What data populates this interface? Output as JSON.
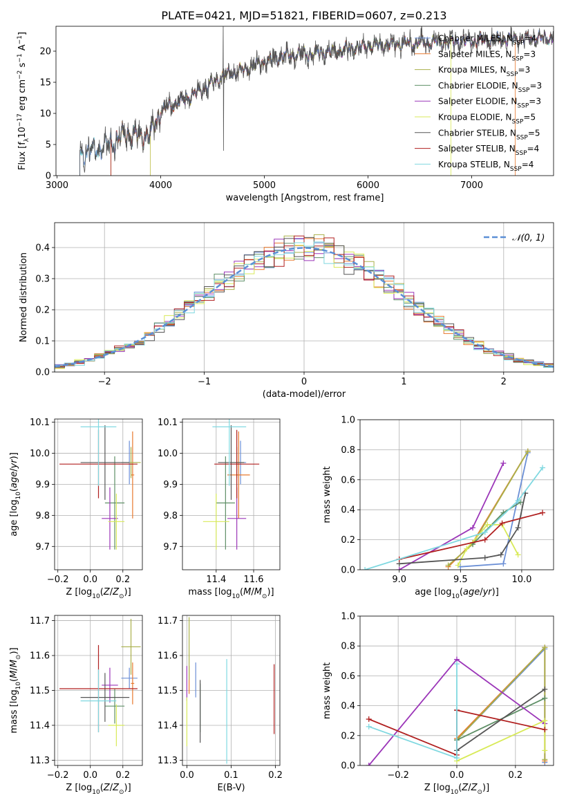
{
  "title": "PLATE=0421, MJD=51821, FIBERID=0607, z=0.213",
  "colors": [
    "#6b8fd6",
    "#e8782d",
    "#a9b04a",
    "#5e8f66",
    "#9b35b8",
    "#d8ea58",
    "#555555",
    "#b01f1f",
    "#7fd8e0"
  ],
  "chart_data": [
    {
      "type": "line",
      "id": "spectrum",
      "xlabel": "wavelength [Angstrom, rest frame]",
      "ylabel": "Flux [f",
      "ylabel_sub": "λ",
      "ylabel_rest": "10",
      "ylabel_exp1": "−17",
      "ylabel_mid": " erg cm",
      "ylabel_exp2": "−2",
      "ylabel_mid2": " s",
      "ylabel_exp3": "−1",
      "ylabel_mid3": " A",
      "ylabel_exp4": "−1",
      "ylabel_end": "]",
      "xlim": [
        2990,
        7790
      ],
      "ylim": [
        0,
        24
      ],
      "xticks": [
        "3000",
        "4000",
        "5000",
        "6000",
        "7000"
      ],
      "yticks": [
        "0",
        "5",
        "10",
        "15",
        "20"
      ],
      "legend": [
        {
          "name": "Chabrier MILES, N",
          "sub": "SSP",
          "val": "=4"
        },
        {
          "name": "Salpeter MILES, N",
          "sub": "SSP",
          "val": "=3"
        },
        {
          "name": "Kroupa MILES, N",
          "sub": "SSP",
          "val": "=3"
        },
        {
          "name": "Chabrier ELODIE, N",
          "sub": "SSP",
          "val": "=3"
        },
        {
          "name": "Salpeter ELODIE, N",
          "sub": "SSP",
          "val": "=3"
        },
        {
          "name": "Kroupa ELODIE, N",
          "sub": "SSP",
          "val": "=5"
        },
        {
          "name": "Chabrier STELIB, N",
          "sub": "SSP",
          "val": "=5"
        },
        {
          "name": "Salpeter STELIB, N",
          "sub": "SSP",
          "val": "=4"
        },
        {
          "name": "Kroupa STELIB, N",
          "sub": "SSP",
          "val": "=4"
        }
      ],
      "continuum": [
        [
          3220,
          3.2
        ],
        [
          3500,
          5.0
        ],
        [
          3600,
          6.0
        ],
        [
          3700,
          6.8
        ],
        [
          3800,
          6.3
        ],
        [
          3900,
          6.5
        ],
        [
          4000,
          10.5
        ],
        [
          4200,
          12.0
        ],
        [
          4400,
          13.8
        ],
        [
          4600,
          16.0
        ],
        [
          4800,
          17.0
        ],
        [
          5000,
          18.3
        ],
        [
          5200,
          19.3
        ],
        [
          5500,
          19.6
        ],
        [
          5800,
          20.3
        ],
        [
          6000,
          20.8
        ],
        [
          6300,
          21.2
        ],
        [
          6600,
          21.4
        ],
        [
          7000,
          21.6
        ],
        [
          7400,
          22.0
        ],
        [
          7790,
          22.1
        ]
      ],
      "model_start": [
        3220,
        3520,
        3520,
        3900,
        3900,
        3900,
        3220,
        3520,
        3220
      ],
      "model_end": [
        7790,
        7420,
        7790,
        7790,
        7790,
        6800,
        7790,
        7790,
        7790
      ]
    },
    {
      "type": "histogram",
      "id": "residuals",
      "xlabel": "(data-model)/error",
      "ylabel": "Normed distribution",
      "xlim": [
        -2.5,
        2.5
      ],
      "ylim": [
        0,
        0.48
      ],
      "xticks": [
        "−2",
        "−1",
        "0",
        "1",
        "2"
      ],
      "yticks": [
        "0.0",
        "0.1",
        "0.2",
        "0.3",
        "0.4"
      ],
      "bin_width": 0.1,
      "legend_label": "𝒩(0, 1)"
    },
    {
      "type": "scatter",
      "id": "age-vs-z",
      "xlabel": "Z [log",
      "xlabel_sub": "10",
      "xlabel_rest": "(Z/Z",
      "xlabel_sub2": "⊙",
      "xlabel_end": ")]",
      "ylabel": "age  [log",
      "ylabel_sub": "10",
      "ylabel_rest": "(age/yr)]",
      "xlim": [
        -0.22,
        0.32
      ],
      "ylim": [
        9.625,
        10.11
      ],
      "xticks": [
        "−0.2",
        "0.0",
        "0.2"
      ],
      "yticks": [
        "9.7",
        "9.8",
        "9.9",
        "10.0",
        "10.1"
      ],
      "points": [
        {
          "x": 0.24,
          "xerr": 0.05,
          "y": 9.97,
          "yerr": 0.07
        },
        {
          "x": 0.26,
          "xerr": 0.01,
          "y": 9.93,
          "yerr": 0.14
        },
        {
          "x": 0.25,
          "xerr": 0.06,
          "y": 9.97,
          "yerr": 0.05
        },
        {
          "x": 0.15,
          "xerr": 0.06,
          "y": 9.84,
          "yerr": 0.15
        },
        {
          "x": 0.12,
          "xerr": 0.05,
          "y": 9.79,
          "yerr": 0.1
        },
        {
          "x": 0.16,
          "xerr": 0.05,
          "y": 9.78,
          "yerr": 0.09
        },
        {
          "x": 0.09,
          "xerr": 0.15,
          "y": 9.97,
          "yerr": 0.12
        },
        {
          "x": 0.05,
          "xerr": 0.24,
          "y": 9.965,
          "yerr": 0.11
        },
        {
          "x": 0.05,
          "xerr": 0.11,
          "y": 10.085,
          "yerr": 0.19
        }
      ]
    },
    {
      "type": "scatter",
      "id": "age-vs-mass",
      "xlabel": "mass [log",
      "xlabel_sub": "10",
      "xlabel_rest": "(M/M",
      "xlabel_sub2": "⊙",
      "xlabel_end": ")]",
      "xlim": [
        11.22,
        11.74
      ],
      "ylim": [
        9.625,
        10.11
      ],
      "xticks": [
        "11.4",
        "11.6"
      ],
      "yticks": [
        "9.7",
        "9.8",
        "9.9",
        "10.0",
        "10.1"
      ],
      "points": [
        {
          "x": 11.53,
          "xerr": 0.03,
          "y": 9.97,
          "yerr": 0.07
        },
        {
          "x": 11.52,
          "xerr": 0.06,
          "y": 9.93,
          "yerr": 0.14
        },
        {
          "x": 11.51,
          "xerr": 0.04,
          "y": 9.97,
          "yerr": 0.05
        },
        {
          "x": 11.45,
          "xerr": 0.05,
          "y": 9.84,
          "yerr": 0.15
        },
        {
          "x": 11.51,
          "xerr": 0.05,
          "y": 9.79,
          "yerr": 0.1
        },
        {
          "x": 11.4,
          "xerr": 0.07,
          "y": 9.78,
          "yerr": 0.09
        },
        {
          "x": 11.48,
          "xerr": 0.07,
          "y": 9.97,
          "yerr": 0.12
        },
        {
          "x": 11.51,
          "xerr": 0.12,
          "y": 9.965,
          "yerr": 0.11
        },
        {
          "x": 11.47,
          "xerr": 0.09,
          "y": 10.085,
          "yerr": 0.19
        }
      ]
    },
    {
      "type": "line",
      "id": "weight-vs-age",
      "xlabel": "age  [log",
      "xlabel_sub": "10",
      "xlabel_rest": "(age/yr)]",
      "ylabel": "mass weight",
      "xlim": [
        8.68,
        10.26
      ],
      "ylim": [
        0,
        1
      ],
      "xticks": [
        "9.0",
        "9.5",
        "10.0"
      ],
      "yticks": [
        "0.0",
        "0.2",
        "0.4",
        "0.6",
        "0.8",
        "1.0"
      ],
      "series": [
        {
          "x": [
            9.5,
            9.85,
            10.05
          ],
          "y": [
            0.02,
            0.04,
            0.78
          ]
        },
        {
          "x": [
            9.4,
            9.6,
            10.05
          ],
          "y": [
            0.02,
            0.18,
            0.79
          ]
        },
        {
          "x": [
            9.4,
            9.6,
            10.05
          ],
          "y": [
            0.03,
            0.17,
            0.79
          ]
        },
        {
          "x": [
            9.6,
            9.85,
            9.99
          ],
          "y": [
            0.17,
            0.38,
            0.45
          ]
        },
        {
          "x": [
            9.0,
            9.6,
            9.85
          ],
          "y": [
            0.0,
            0.28,
            0.71
          ]
        },
        {
          "x": [
            9.48,
            9.55,
            9.72,
            9.84,
            9.97
          ],
          "y": [
            0.03,
            0.14,
            0.3,
            0.3,
            0.1
          ]
        },
        {
          "x": [
            9.0,
            9.7,
            9.83,
            9.97,
            10.03
          ],
          "y": [
            0.04,
            0.08,
            0.1,
            0.28,
            0.51
          ]
        },
        {
          "x": [
            9.0,
            9.7,
            9.84,
            10.17
          ],
          "y": [
            0.07,
            0.2,
            0.31,
            0.38
          ]
        },
        {
          "x": [
            8.72,
            9.7,
            9.97,
            10.17
          ],
          "y": [
            0.0,
            0.25,
            0.46,
            0.68
          ]
        }
      ]
    },
    {
      "type": "scatter",
      "id": "mass-vs-z",
      "xlabel": "Z [log",
      "xlabel_sub": "10",
      "xlabel_rest": "(Z/Z",
      "xlabel_sub2": "⊙",
      "xlabel_end": ")]",
      "ylabel": "mass [log",
      "ylabel_sub": "10",
      "ylabel_rest": "(M/M",
      "ylabel_sub2": "⊙",
      "ylabel_end": ")]",
      "xlim": [
        -0.22,
        0.32
      ],
      "ylim": [
        11.285,
        11.715
      ],
      "xticks": [
        "−0.2",
        "0.0",
        "0.2"
      ],
      "yticks": [
        "11.3",
        "11.4",
        "11.5",
        "11.6",
        "11.7"
      ],
      "points": [
        {
          "x": 0.24,
          "xerr": 0.05,
          "y": 11.535,
          "yerr": 0.03
        },
        {
          "x": 0.26,
          "xerr": 0.01,
          "y": 11.52,
          "yerr": 0.06
        },
        {
          "x": 0.25,
          "xerr": 0.06,
          "y": 11.625,
          "yerr": 0.08
        },
        {
          "x": 0.15,
          "xerr": 0.06,
          "y": 11.455,
          "yerr": 0.05
        },
        {
          "x": 0.12,
          "xerr": 0.05,
          "y": 11.515,
          "yerr": 0.05
        },
        {
          "x": 0.16,
          "xerr": 0.05,
          "y": 11.4,
          "yerr": 0.06
        },
        {
          "x": 0.09,
          "xerr": 0.15,
          "y": 11.48,
          "yerr": 0.07
        },
        {
          "x": 0.05,
          "xerr": 0.24,
          "y": 11.505,
          "yerr": 0.125
        },
        {
          "x": 0.05,
          "xerr": 0.11,
          "y": 11.47,
          "yerr": 0.09
        }
      ]
    },
    {
      "type": "scatter",
      "id": "mass-vs-ebv",
      "xlabel": "E(B-V)",
      "xlim": [
        -0.01,
        0.21
      ],
      "ylim": [
        11.285,
        11.715
      ],
      "xticks": [
        "0.0",
        "0.1",
        "0.2"
      ],
      "yticks": [
        "11.3",
        "11.4",
        "11.5",
        "11.6",
        "11.7"
      ],
      "points": [
        {
          "x": 0.02,
          "y": 11.53,
          "yerr": 0.05
        },
        {
          "x": 0.005,
          "y": 11.53,
          "yerr": 0.04
        },
        {
          "x": 0.005,
          "y": 11.62,
          "yerr": 0.09
        },
        {
          "x": 0.03,
          "y": 11.45,
          "yerr": 0.07
        },
        {
          "x": 0.0,
          "y": 11.52,
          "yerr": 0.05
        },
        {
          "x": 0.0,
          "y": 11.41,
          "yerr": 0.07
        },
        {
          "x": 0.03,
          "y": 11.44,
          "yerr": 0.09
        },
        {
          "x": 0.197,
          "y": 11.475,
          "yerr": 0.1
        },
        {
          "x": 0.09,
          "y": 11.44,
          "yerr": 0.15
        }
      ]
    },
    {
      "type": "line",
      "id": "weight-vs-z",
      "xlabel": "Z [log",
      "xlabel_sub": "10",
      "xlabel_rest": "(Z/Z",
      "xlabel_sub2": "⊙",
      "xlabel_end": ")]",
      "ylabel": "mass weight",
      "xlim": [
        -0.33,
        0.33
      ],
      "ylim": [
        0,
        1
      ],
      "xticks": [
        "−0.2",
        "0.0",
        "0.2"
      ],
      "yticks": [
        "0.0",
        "0.2",
        "0.4",
        "0.6",
        "0.8",
        "1.0"
      ],
      "series": [
        {
          "x": [
            0.0,
            0.3,
            0.3
          ],
          "y": [
            0.17,
            0.78,
            0.02
          ]
        },
        {
          "x": [
            0.0,
            0.3,
            0.3
          ],
          "y": [
            0.18,
            0.79,
            0.03
          ]
        },
        {
          "x": [
            0.0,
            0.3,
            0.3
          ],
          "y": [
            0.17,
            0.79,
            0.04
          ]
        },
        {
          "x": [
            0.0,
            0.3
          ],
          "y": [
            0.17,
            0.45
          ]
        },
        {
          "x": [
            -0.3,
            0.0,
            0.3
          ],
          "y": [
            0.0,
            0.71,
            0.28
          ]
        },
        {
          "x": [
            0.0,
            0.3,
            0.3
          ],
          "y": [
            0.03,
            0.3,
            0.1
          ]
        },
        {
          "x": [
            0.0,
            0.0,
            0.3
          ],
          "y": [
            0.37,
            0.1,
            0.51
          ]
        },
        {
          "x": [
            -0.3,
            0.0,
            0.0,
            0.3
          ],
          "y": [
            0.31,
            0.07,
            0.37,
            0.24
          ]
        },
        {
          "x": [
            -0.3,
            0.0,
            0.0
          ],
          "y": [
            0.26,
            0.05,
            0.68
          ]
        }
      ]
    }
  ]
}
